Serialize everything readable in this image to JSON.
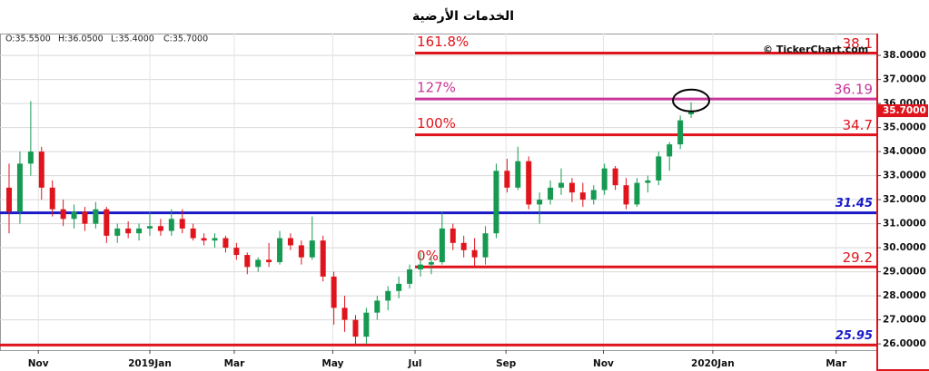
{
  "chart_data": {
    "type": "candlestick",
    "title": "الخدمات الأرضية",
    "watermark": "© TickerChart.com",
    "header": [
      "O:35.5500",
      "H:36.0500",
      "L:35.4000",
      "C:35.7000"
    ],
    "last_price": {
      "value": 35.7,
      "label": "35.7000"
    },
    "up_color": "#169a52",
    "down_color": "#e0141c",
    "x": [
      -13,
      -12,
      -11,
      -10,
      -9,
      -8,
      -7,
      -6,
      -5,
      -4,
      -3,
      -2,
      -1,
      0,
      1,
      2,
      3,
      4,
      5,
      6,
      7,
      8,
      9,
      10,
      11,
      12,
      13,
      14,
      15,
      16,
      17,
      18,
      19,
      20,
      21,
      22,
      23,
      24,
      25,
      26,
      27,
      28,
      29,
      30,
      31,
      32,
      33,
      34,
      35,
      36,
      37,
      38,
      39,
      40,
      41,
      42,
      43,
      44,
      45,
      46,
      47,
      48,
      49,
      50
    ],
    "open": [
      32.5,
      31.5,
      33.5,
      34.0,
      32.5,
      31.6,
      31.2,
      31.5,
      31.0,
      31.6,
      30.5,
      30.8,
      30.6,
      30.8,
      30.9,
      30.7,
      31.2,
      30.8,
      30.4,
      30.3,
      30.4,
      30.0,
      29.7,
      29.2,
      29.5,
      29.4,
      30.4,
      30.1,
      29.6,
      30.3,
      28.8,
      27.5,
      27.0,
      26.3,
      27.3,
      27.8,
      28.2,
      28.5,
      29.1,
      29.3,
      29.4,
      30.8,
      30.2,
      29.9,
      29.6,
      30.6,
      33.2,
      32.5,
      33.6,
      31.8,
      32.0,
      32.5,
      32.7,
      32.3,
      32.0,
      32.4,
      33.3,
      32.6,
      31.8,
      32.7,
      32.8,
      33.8,
      34.3,
      35.55
    ],
    "high": [
      33.5,
      34.0,
      36.1,
      34.2,
      32.8,
      32.0,
      31.8,
      31.7,
      31.9,
      31.7,
      31.0,
      31.1,
      31.0,
      31.5,
      31.2,
      31.6,
      31.6,
      31.0,
      30.6,
      30.6,
      30.5,
      30.2,
      29.8,
      29.6,
      30.2,
      30.7,
      30.6,
      30.3,
      31.3,
      30.5,
      29.0,
      28.0,
      27.2,
      27.5,
      28.0,
      28.4,
      28.8,
      29.3,
      29.8,
      29.6,
      31.5,
      31.0,
      30.5,
      30.4,
      30.9,
      33.5,
      33.7,
      34.2,
      33.8,
      32.3,
      32.8,
      33.3,
      32.9,
      32.7,
      32.6,
      33.5,
      33.4,
      32.9,
      32.9,
      33.0,
      34.0,
      34.4,
      35.5,
      36.05
    ],
    "low": [
      30.6,
      31.0,
      33.0,
      32.0,
      31.3,
      30.9,
      30.8,
      30.7,
      30.8,
      30.2,
      30.2,
      30.4,
      30.3,
      30.5,
      30.5,
      30.5,
      30.6,
      30.3,
      30.1,
      30.0,
      29.8,
      29.5,
      28.9,
      29.0,
      29.2,
      29.3,
      29.9,
      29.3,
      29.5,
      28.6,
      26.8,
      26.5,
      26.0,
      26.0,
      27.0,
      27.4,
      27.9,
      28.3,
      28.8,
      28.9,
      29.3,
      29.9,
      29.6,
      29.2,
      29.3,
      30.4,
      32.3,
      32.4,
      31.6,
      31.0,
      31.8,
      32.2,
      31.9,
      31.7,
      31.8,
      32.2,
      32.4,
      31.6,
      31.7,
      32.3,
      32.6,
      33.2,
      34.1,
      35.4
    ],
    "close": [
      31.5,
      33.5,
      34.0,
      32.5,
      31.6,
      31.2,
      31.5,
      31.0,
      31.6,
      30.5,
      30.8,
      30.6,
      30.8,
      30.9,
      30.7,
      31.2,
      30.8,
      30.4,
      30.3,
      30.4,
      30.0,
      29.7,
      29.2,
      29.5,
      29.4,
      30.4,
      30.1,
      29.6,
      30.3,
      28.8,
      27.5,
      27.0,
      26.3,
      27.3,
      27.8,
      28.2,
      28.5,
      29.1,
      29.3,
      29.4,
      30.8,
      30.2,
      29.9,
      29.6,
      30.6,
      33.2,
      32.5,
      33.6,
      31.8,
      32.0,
      32.5,
      32.7,
      32.3,
      32.0,
      32.4,
      33.3,
      32.6,
      31.8,
      32.7,
      32.8,
      33.8,
      34.3,
      35.3,
      35.7
    ],
    "xlim": [
      -13.84,
      67.11
    ],
    "xticks": [
      {
        "value": -10.3,
        "label": "Nov"
      },
      {
        "value": 0,
        "label": "2019Jan"
      },
      {
        "value": 7.8,
        "label": "Mar"
      },
      {
        "value": 16.9,
        "label": "May"
      },
      {
        "value": 24.5,
        "label": "Jul"
      },
      {
        "value": 32.9,
        "label": "Sep"
      },
      {
        "value": 41.9,
        "label": "Nov"
      },
      {
        "value": 52,
        "label": "2020Jan"
      },
      {
        "value": 63.4,
        "label": "Mar"
      }
    ],
    "ylim": [
      25.74,
      38.91
    ],
    "yticks": [
      {
        "value": 26,
        "label": "26.0000"
      },
      {
        "value": 27,
        "label": "27.0000"
      },
      {
        "value": 28,
        "label": "28.0000"
      },
      {
        "value": 29,
        "label": "29.0000"
      },
      {
        "value": 30,
        "label": "30.0000"
      },
      {
        "value": 31,
        "label": "31.0000"
      },
      {
        "value": 32,
        "label": "32.0000"
      },
      {
        "value": 33,
        "label": "33.0000"
      },
      {
        "value": 34,
        "label": "34.0000"
      },
      {
        "value": 35,
        "label": "35.0000"
      },
      {
        "value": 36,
        "label": "36.0000"
      },
      {
        "value": 37,
        "label": "37.0000"
      },
      {
        "value": 38,
        "label": "38.0000"
      }
    ],
    "grid": true,
    "levels": [
      {
        "value": 38.1,
        "label": "161.8%",
        "color": "#e0141c",
        "label_color": "#e0141c",
        "x0": 24.5
      },
      {
        "value": 36.19,
        "label": "127%",
        "color": "#c8369a",
        "label_color": "#c8369a",
        "x0": 24.5
      },
      {
        "value": 34.7,
        "label": "100%",
        "color": "#e0141c",
        "label_color": "#e0141c",
        "x0": 24.5
      },
      {
        "value": 31.45,
        "color": "#1a1ac8",
        "label_color": "#1a1ac8"
      },
      {
        "value": 29.2,
        "label": "0%",
        "color": "#e0141c",
        "label_color": "#e0141c",
        "x0": 24.5
      },
      {
        "value": 25.95,
        "color": "#e0141c",
        "label_color": "#1a1ac8"
      }
    ]
  }
}
